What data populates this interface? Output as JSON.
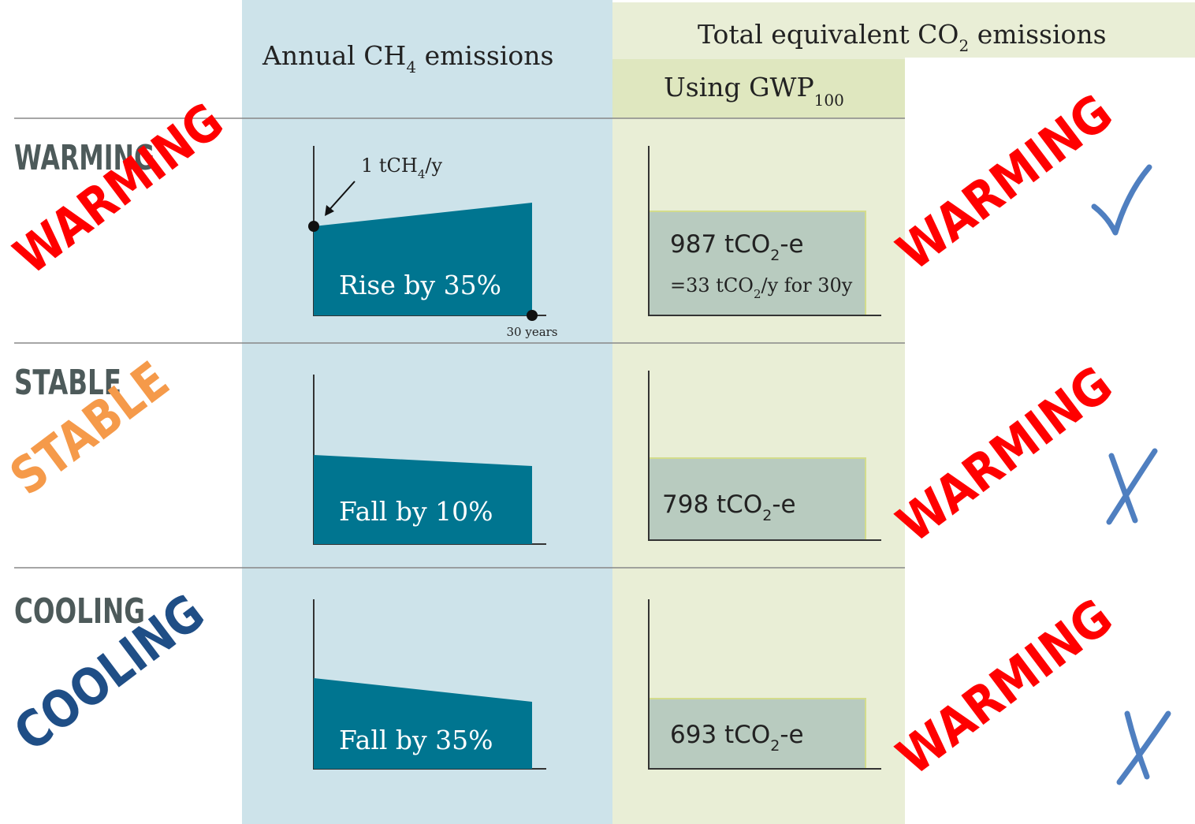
{
  "header": {
    "annual": {
      "pre": "Annual CH",
      "sub": "4",
      "post": " emissions"
    },
    "total": {
      "pre": "Total equivalent CO",
      "sub": "2",
      "post": " emissions"
    },
    "gwp": {
      "pre": "Using GWP",
      "sub": "100"
    }
  },
  "annotations": {
    "start": {
      "pre": "1 tCH",
      "sub": "4",
      "post": "/y"
    },
    "end": "30 years"
  },
  "rows": [
    {
      "label": "WARMING",
      "stamp": "WARMING",
      "change": "Rise by 35%",
      "result": {
        "pre": "987 tCO",
        "sub": "2",
        "post": "-e"
      },
      "detail": {
        "pre": "=33 tCO",
        "sub": "2",
        "post": "/y for 30y"
      },
      "verdict": "WARMING"
    },
    {
      "label": "STABLE",
      "stamp": "STABLE",
      "change": "Fall by 10%",
      "result": {
        "pre": "798 tCO",
        "sub": "2",
        "post": "-e"
      },
      "verdict": "WARMING"
    },
    {
      "label": "COOLING",
      "stamp": "COOLING",
      "change": "Fall by 35%",
      "result": {
        "pre": "693 tCO",
        "sub": "2",
        "post": "-e"
      },
      "verdict": "WARMING"
    }
  ]
}
